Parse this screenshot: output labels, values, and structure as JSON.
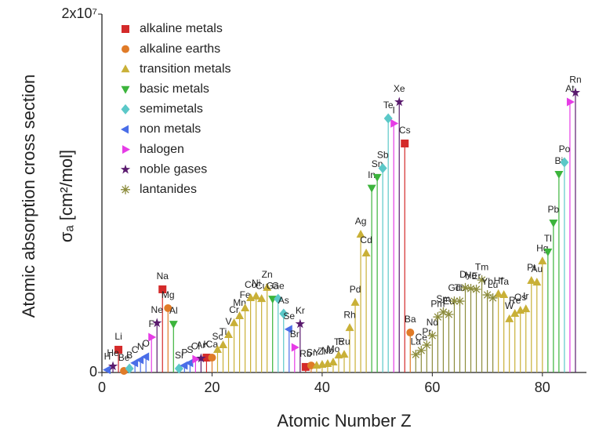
{
  "chart_data": {
    "type": "scatter",
    "xlabel": "Atomic Number Z",
    "ylabel": "Atomic absorption cross section",
    "ylabel_unit": "σₐ [cm²/mol]",
    "xlim": [
      0,
      88
    ],
    "xticks": [
      0,
      20,
      40,
      60,
      80
    ],
    "ylim": [
      0,
      20000000
    ],
    "yticks": [
      0,
      {
        "value": 20000000,
        "label": "2x10⁷"
      }
    ],
    "legend": "upper left",
    "series": [
      {
        "name": "alkaline metals",
        "color": "#d42a2a",
        "marker": "square",
        "x": [
          3,
          11,
          19,
          37,
          55
        ],
        "values": [
          1270000,
          4640000,
          830000,
          310000,
          12780000
        ],
        "labels": [
          "Li",
          "Na",
          "K",
          "Rb",
          "Cs"
        ]
      },
      {
        "name": "alkaline earths",
        "color": "#e07b28",
        "marker": "circle",
        "x": [
          4,
          12,
          20,
          38,
          56
        ],
        "values": [
          90000,
          3590000,
          830000,
          390000,
          2230000
        ],
        "labels": [
          "Be",
          "Mg",
          "Ca",
          "Sr",
          "Ba"
        ]
      },
      {
        "name": "transition metals",
        "color": "#c9b037",
        "marker": "triangle-up",
        "x": [
          21,
          22,
          23,
          24,
          25,
          26,
          27,
          28,
          29,
          30,
          39,
          40,
          41,
          42,
          43,
          44,
          45,
          46,
          47,
          48,
          72,
          73,
          74,
          75,
          76,
          77,
          78,
          79,
          80
        ],
        "values": [
          1270000,
          1530000,
          2100000,
          2760000,
          3150000,
          3590000,
          4160000,
          4250000,
          4110000,
          4730000,
          390000,
          440000,
          480000,
          570000,
          960000,
          1000000,
          2490000,
          3900000,
          7700000,
          6650000,
          4380000,
          4330000,
          2980000,
          3280000,
          3460000,
          3540000,
          5120000,
          5030000,
          6210000
        ],
        "labels": [
          "Sc",
          "Ti",
          "V",
          "Cr",
          "Mn",
          "Fe",
          "Co",
          "Ni",
          "Cu",
          "Zn",
          "Y",
          "Zr",
          "Nb",
          "Mo",
          "Tc",
          "Ru",
          "Rh",
          "Pd",
          "Ag",
          "Cd",
          "Hf",
          "Ta",
          "W",
          "Re",
          "Os",
          "Ir",
          "Pt",
          "Au",
          "Hg"
        ]
      },
      {
        "name": "basic metals",
        "color": "#3cb43c",
        "marker": "triangle-down",
        "x": [
          13,
          31,
          49,
          50,
          81,
          82,
          83
        ],
        "values": [
          2710000,
          4110000,
          10300000,
          10900000,
          6740000,
          8360000,
          11070000
        ],
        "labels": [
          "Al",
          "Ga",
          "In",
          "Sn",
          "Tl",
          "Pb",
          "Bi"
        ]
      },
      {
        "name": "semimetals",
        "color": "#5bc8c8",
        "marker": "diamond",
        "x": [
          5,
          14,
          32,
          33,
          51,
          52,
          84
        ],
        "values": [
          220000,
          220000,
          4110000,
          3280000,
          11400000,
          14180000,
          11730000
        ],
        "labels": [
          "B",
          "Si",
          "Ge",
          "As",
          "Sb",
          "Te",
          "Po"
        ]
      },
      {
        "name": "non metals",
        "color": "#4a6ee8",
        "marker": "triangle-left",
        "x": [
          1,
          6,
          7,
          8,
          15,
          16,
          34
        ],
        "values": [
          150000,
          530000,
          700000,
          880000,
          390000,
          530000,
          2410000
        ],
        "labels": [
          "H",
          "C",
          "N",
          "O",
          "P",
          "S",
          "Se"
        ]
      },
      {
        "name": "halogen",
        "color": "#e63ce6",
        "marker": "triangle-right",
        "x": [
          9,
          17,
          35,
          53,
          85
        ],
        "values": [
          1970000,
          740000,
          1400000,
          13900000,
          15100000
        ],
        "labels": [
          "F",
          "Cl",
          "Br",
          "I",
          "At"
        ]
      },
      {
        "name": "noble gases",
        "color": "#5a1a6e",
        "marker": "star",
        "x": [
          2,
          10,
          18,
          36,
          54,
          86
        ],
        "values": [
          350000,
          2760000,
          790000,
          2710000,
          15100000,
          15620000
        ],
        "labels": [
          "He",
          "Ne",
          "Ar",
          "Kr",
          "Xe",
          "Rn"
        ]
      },
      {
        "name": "lantanides",
        "color": "#8c8c3c",
        "marker": "asterisk",
        "x": [
          57,
          58,
          59,
          60,
          61,
          62,
          63,
          64,
          65,
          66,
          67,
          68,
          69,
          70,
          71
        ],
        "values": [
          1000000,
          1230000,
          1530000,
          2060000,
          3100000,
          3370000,
          3240000,
          3980000,
          3980000,
          4730000,
          4680000,
          4640000,
          5160000,
          4330000,
          4160000
        ],
        "labels": [
          "La",
          "Ce",
          "Pr",
          "Nd",
          "Pm",
          "Sm",
          "Eu",
          "Gd",
          "Tb",
          "Dy",
          "Ho",
          "Er",
          "Tm",
          "Yb",
          "Lu"
        ]
      }
    ]
  }
}
